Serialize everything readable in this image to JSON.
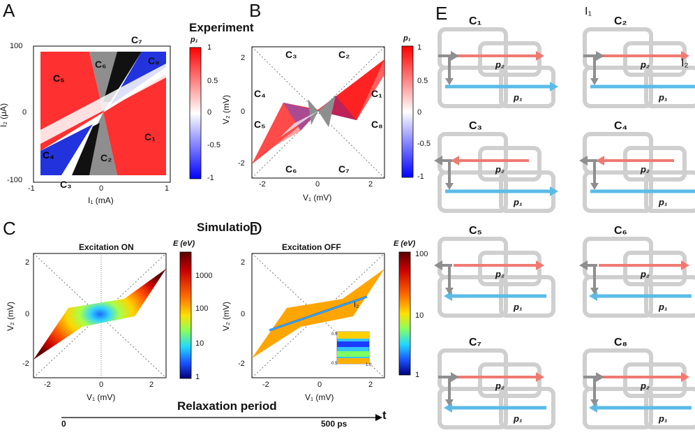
{
  "panels": {
    "A": "A",
    "B": "B",
    "C": "C",
    "D": "D",
    "E": "E"
  },
  "headings": {
    "experiment": "Experiment",
    "simulation": "Simulation",
    "excitation_on": "Excitation ON",
    "excitation_off": "Excitation OFF",
    "relaxation": "Relaxation period"
  },
  "axes": {
    "A_x": "I₁ (mA)",
    "A_y": "I₂ (μA)",
    "B_x": "V₁ (mV)",
    "B_y": "V₂ (mV)",
    "C_x": "V₁ (mV)",
    "C_y": "V₂ (mV)",
    "D_x": "V₁ (mV)",
    "D_y": "V₂ (mV)"
  },
  "ticks": {
    "A_x": [
      "-1",
      "0",
      "1"
    ],
    "A_y": [
      "100",
      "0",
      "-100"
    ],
    "B_x": [
      "-2",
      "0",
      "2"
    ],
    "B_y": [
      "2",
      "0",
      "-2"
    ],
    "C_x": [
      "-2",
      "0",
      "2"
    ],
    "C_y": [
      "2",
      "0",
      "-2"
    ],
    "D_x": [
      "-2",
      "0",
      "2"
    ],
    "D_y": [
      "2",
      "0",
      "-2"
    ]
  },
  "colorbars": {
    "p1_title": "p₁",
    "p1_ticks": [
      "1",
      "0.5",
      "0",
      "-0.5",
      "-1"
    ],
    "E_title": "E (eV)",
    "E_on_ticks": [
      "1000",
      "100",
      "10",
      "1"
    ],
    "E_off_ticks": [
      "100",
      "10",
      "1"
    ]
  },
  "regions": {
    "A": [
      "C₁",
      "C₂",
      "C₃",
      "C₄",
      "C₅",
      "C₆",
      "C₇",
      "C₈"
    ],
    "B": [
      "C₁",
      "C₂",
      "C₃",
      "C₄",
      "C₅",
      "C₆",
      "C₇",
      "C₈"
    ]
  },
  "inset": {
    "label": "I₂",
    "t1": "0.5",
    "t2": "0.5",
    "t3": "1.0"
  },
  "timeline": {
    "start": "0",
    "end": "500 ps",
    "axis": "t"
  },
  "diagrams": [
    {
      "title": "C₁"
    },
    {
      "title": "C₂"
    },
    {
      "title": "C₃"
    },
    {
      "title": "C₄"
    },
    {
      "title": "C₅"
    },
    {
      "title": "C₆"
    },
    {
      "title": "C₇"
    },
    {
      "title": "C₈"
    }
  ],
  "diagram_labels": {
    "p1": "p₁",
    "p2": "p₂",
    "I1": "I₁",
    "I2": "I₂"
  },
  "colors": {
    "red": "#e8413e",
    "blue": "#2f3fd8",
    "gray": "#8f8f8f",
    "cyan": "#5bbbe8",
    "salmon": "#ef7a72"
  }
}
